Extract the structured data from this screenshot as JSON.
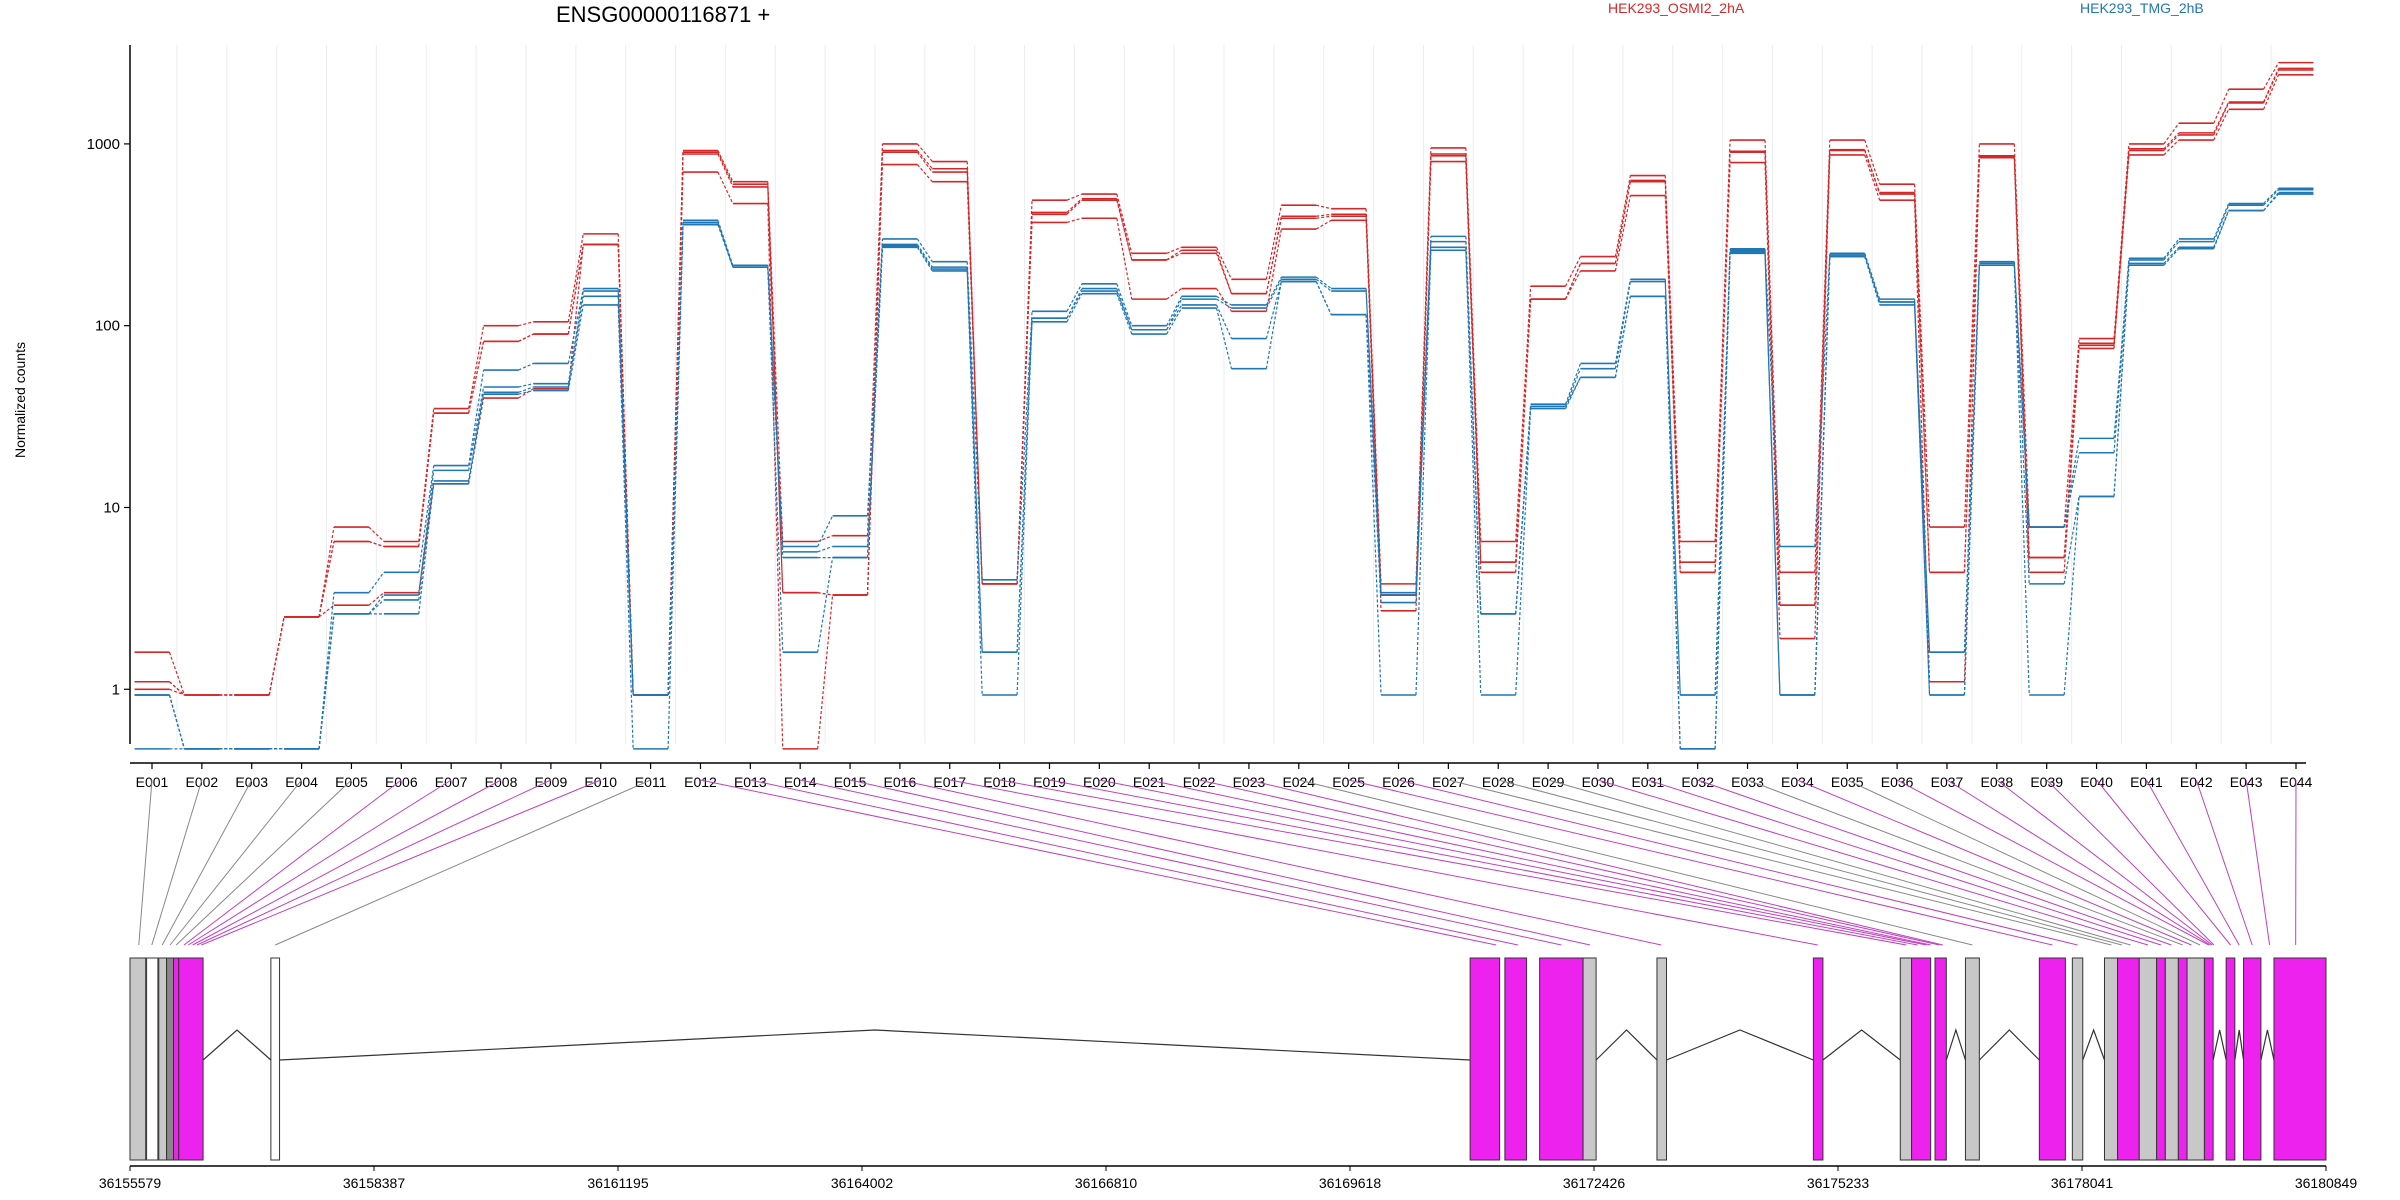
{
  "chart_data": {
    "type": "line",
    "title": "ENSG00000116871 +",
    "ylabel": "Normalized counts",
    "yscale": "log",
    "ylim": [
      0.5,
      3500
    ],
    "yticks": [
      "1",
      "10",
      "100",
      "1000"
    ],
    "yticks_values": [
      1,
      10,
      100,
      1000
    ],
    "categories": [
      "E001",
      "E002",
      "E003",
      "E004",
      "E005",
      "E006",
      "E007",
      "E008",
      "E009",
      "E010",
      "E011",
      "E012",
      "E013",
      "E014",
      "E015",
      "E016",
      "E017",
      "E018",
      "E019",
      "E020",
      "E021",
      "E022",
      "E023",
      "E024",
      "E025",
      "E026",
      "E027",
      "E028",
      "E029",
      "E030",
      "E031",
      "E032",
      "E033",
      "E034",
      "E035",
      "E036",
      "E037",
      "E038",
      "E039",
      "E040",
      "E041",
      "E042",
      "E043",
      "E044"
    ],
    "legend": [
      {
        "name": "HEK293_OSMI2_2hA",
        "color": "#d62728"
      },
      {
        "name": "HEK293_TMG_2hB",
        "color": "#1f77b4"
      }
    ],
    "series": [
      {
        "group": "HEK293_OSMI2_2hA",
        "color": "#d62728",
        "values": [
          1.6,
          0.93,
          0.93,
          2.5,
          7.8,
          6.5,
          35,
          100,
          105,
          320,
          0.93,
          920,
          620,
          6.5,
          7,
          1000,
          800,
          3.8,
          490,
          530,
          250,
          270,
          180,
          460,
          440,
          3.8,
          950,
          6.5,
          165,
          240,
          670,
          6.5,
          1050,
          4.4,
          1050,
          600,
          7.8,
          1000,
          7.8,
          85,
          1000,
          1300,
          2000,
          2800
        ]
      },
      {
        "group": "HEK293_OSMI2_2hA",
        "color": "#d62728",
        "values": [
          1.1,
          0.93,
          0.93,
          2.5,
          6.5,
          6.1,
          33,
          82,
          90,
          280,
          0.93,
          900,
          600,
          3.4,
          3.3,
          920,
          730,
          3.8,
          420,
          500,
          230,
          260,
          150,
          400,
          410,
          3.3,
          880,
          5,
          140,
          220,
          630,
          5,
          910,
          2.9,
          930,
          540,
          4.4,
          860,
          5.3,
          80,
          940,
          1150,
          1700,
          2600
        ]
      },
      {
        "group": "HEK293_OSMI2_2hA",
        "color": "#d62728",
        "values": [
          1.1,
          0.93,
          0.93,
          2.5,
          6.5,
          6.1,
          33,
          82,
          90,
          280,
          0.93,
          880,
          580,
          3.4,
          3.3,
          900,
          700,
          3.8,
          410,
          490,
          230,
          250,
          150,
          390,
          400,
          3.3,
          860,
          5,
          140,
          220,
          620,
          4.4,
          900,
          2.9,
          920,
          530,
          4.4,
          850,
          5.3,
          78,
          920,
          1120,
          1680,
          2550
        ]
      },
      {
        "group": "HEK293_OSMI2_2hA",
        "color": "#d62728",
        "values": [
          1,
          0.93,
          0.93,
          2.5,
          2.9,
          3.4,
          13.5,
          40,
          45,
          280,
          0.93,
          700,
          470,
          0.47,
          3.3,
          770,
          620,
          3.8,
          370,
          390,
          140,
          160,
          120,
          340,
          380,
          2.7,
          800,
          4.4,
          140,
          200,
          520,
          4.4,
          790,
          1.9,
          870,
          490,
          1.1,
          840,
          4.4,
          75,
          870,
          1050,
          1550,
          2400
        ]
      },
      {
        "group": "HEK293_TMG_2hB",
        "color": "#1f77b4",
        "values": [
          0.93,
          0.47,
          0.47,
          0.47,
          3.4,
          4.4,
          17,
          57,
          62,
          160,
          0.93,
          380,
          215,
          6.1,
          9,
          300,
          225,
          4,
          120,
          170,
          100,
          145,
          130,
          185,
          160,
          3.4,
          310,
          2.6,
          37,
          62,
          180,
          0.93,
          265,
          6.1,
          250,
          140,
          1.6,
          225,
          7.8,
          24,
          235,
          300,
          470,
          570
        ]
      },
      {
        "group": "HEK293_TMG_2hB",
        "color": "#1f77b4",
        "values": [
          0.93,
          0.47,
          0.47,
          0.47,
          2.6,
          3.3,
          16,
          46,
          48,
          155,
          0.93,
          370,
          210,
          5.7,
          6.1,
          280,
          210,
          1.6,
          110,
          160,
          95,
          140,
          125,
          180,
          155,
          3.3,
          290,
          2.6,
          36,
          58,
          175,
          0.93,
          260,
          0.93,
          245,
          135,
          1.6,
          220,
          7.8,
          20,
          230,
          290,
          460,
          560
        ]
      },
      {
        "group": "HEK293_TMG_2hB",
        "color": "#1f77b4",
        "values": [
          0.93,
          0.47,
          0.47,
          0.47,
          2.6,
          3.1,
          14,
          43,
          46,
          145,
          0.93,
          360,
          210,
          5.3,
          5.3,
          275,
          205,
          1.6,
          110,
          155,
          95,
          130,
          85,
          175,
          115,
          3,
          270,
          2.6,
          36,
          52,
          145,
          0.47,
          255,
          0.93,
          240,
          135,
          0.93,
          215,
          3.8,
          11.5,
          220,
          270,
          430,
          540
        ]
      },
      {
        "group": "HEK293_TMG_2hB",
        "color": "#1f77b4",
        "values": [
          0.47,
          0.47,
          0.47,
          0.47,
          2.6,
          2.6,
          13.5,
          42,
          44,
          130,
          0.47,
          360,
          210,
          1.6,
          5.3,
          270,
          200,
          0.93,
          105,
          150,
          90,
          125,
          58,
          175,
          115,
          0.93,
          260,
          0.93,
          35,
          52,
          145,
          0.47,
          250,
          0.93,
          240,
          130,
          0.93,
          215,
          0.93,
          11.5,
          215,
          265,
          430,
          530
        ]
      }
    ],
    "gene_axis": {
      "ticks": [
        "36155579",
        "36158387",
        "36161195",
        "36164002",
        "36166810",
        "36169618",
        "36172426",
        "36175233",
        "36178041",
        "36180849"
      ]
    }
  }
}
